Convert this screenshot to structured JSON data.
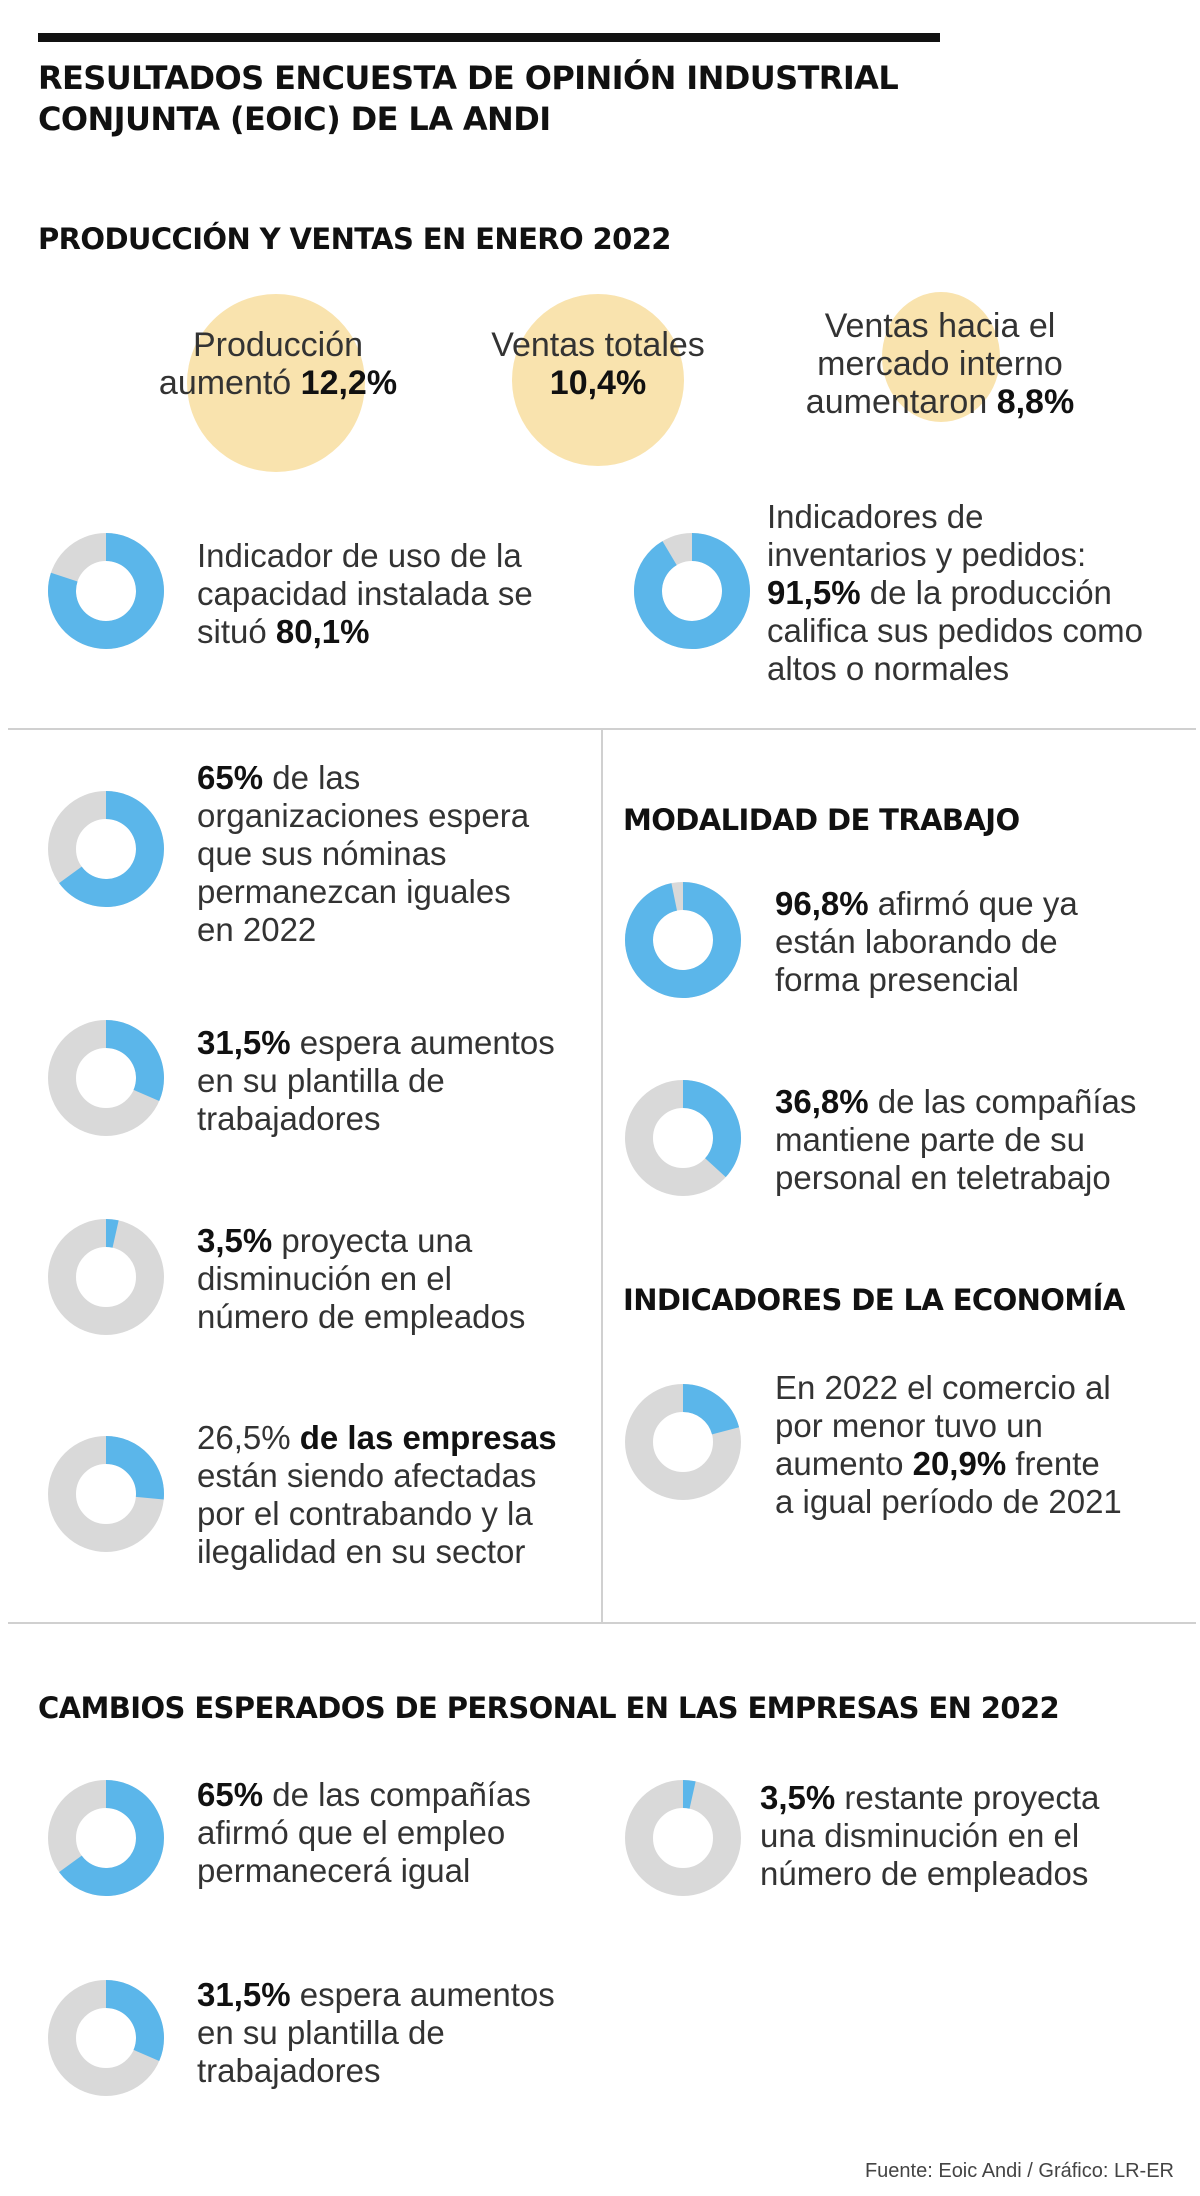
{
  "title_line1": "RESULTADOS ENCUESTA DE OPINIÓN INDUSTRIAL",
  "title_line2": "CONJUNTA (EOIC) DE LA ANDI",
  "colors": {
    "highlight": "#5bb6ea",
    "remainder": "#d9d9d9",
    "bubble": "#f9e3ae"
  },
  "sections": {
    "produccion": "PRODUCCIÓN Y VENTAS  EN ENERO 2022",
    "modalidad": "MODALIDAD DE TRABAJO",
    "economia": "INDICADORES DE LA ECONOMÍA",
    "cambios": "CAMBIOS ESPERADOS DE PERSONAL EN LAS EMPRESAS EN 2022"
  },
  "bubbles": {
    "produccion": {
      "l1": "Producción",
      "l2a": "aumentó ",
      "value": "12,2%"
    },
    "ventas": {
      "l1": "Ventas totales",
      "value": "10,4%"
    },
    "interno": {
      "l1": "Ventas hacia el",
      "l2": "mercado interno",
      "l3a": "aumentaron ",
      "value": "8,8%"
    }
  },
  "chart_data": [
    {
      "type": "pie",
      "style": "donut",
      "id": "capacidad",
      "value": 80.1,
      "text": {
        "l1": "Indicador de uso de la",
        "l2": "capacidad instalada se",
        "l3a": "situó ",
        "value": "80,1%"
      }
    },
    {
      "type": "pie",
      "style": "donut",
      "id": "pedidos",
      "value": 91.5,
      "text": {
        "l1": "Indicadores de",
        "l2": "inventarios y pedidos:",
        "value": "91,5%",
        "l3b": " de la producción",
        "l4": "califica sus pedidos como",
        "l5": "altos o normales"
      }
    },
    {
      "type": "pie",
      "style": "donut",
      "id": "nominas",
      "value": 65,
      "text": {
        "value": "65%",
        "l1b": " de las",
        "l2": "organizaciones espera",
        "l3": "que sus nóminas",
        "l4": "permanezcan iguales",
        "l5": "en 2022"
      }
    },
    {
      "type": "pie",
      "style": "donut",
      "id": "aumentos",
      "value": 31.5,
      "text": {
        "value": "31,5%",
        "l1b": " espera aumentos",
        "l2": "en su plantilla de",
        "l3": "trabajadores"
      }
    },
    {
      "type": "pie",
      "style": "donut",
      "id": "disminucion",
      "value": 3.5,
      "text": {
        "value": "3,5%",
        "l1b": " proyecta una",
        "l2": "disminución en el",
        "l3": "número de empleados"
      }
    },
    {
      "type": "pie",
      "style": "donut",
      "id": "contrabando",
      "value": 26.5,
      "text": {
        "value": "26,5%",
        "l1b": "de las empresas",
        "l2": "están siendo afectadas",
        "l3": "por el contrabando y la",
        "l4": "ilegalidad en su sector"
      }
    },
    {
      "type": "pie",
      "style": "donut",
      "id": "presencial",
      "value": 96.8,
      "text": {
        "value": "96,8%",
        "l1b": " afirmó que ya",
        "l2": "están laborando de",
        "l3": "forma presencial"
      }
    },
    {
      "type": "pie",
      "style": "donut",
      "id": "teletrabajo",
      "value": 36.8,
      "text": {
        "value": "36,8%",
        "l1b": " de las compañías",
        "l2": "mantiene parte de su",
        "l3": "personal en teletrabajo"
      }
    },
    {
      "type": "pie",
      "style": "donut",
      "id": "comercio",
      "value": 20.9,
      "text": {
        "l1": "En 2022 el comercio al",
        "l2": "por menor tuvo un",
        "l3a": "aumento ",
        "value": "20,9%",
        "l3b": " frente",
        "l4": "a igual período de 2021"
      }
    },
    {
      "type": "pie",
      "style": "donut",
      "id": "empleo-igual",
      "value": 65,
      "text": {
        "value": "65%",
        "l1b": " de las compañías",
        "l2": "afirmó que el empleo",
        "l3": "permanecerá igual"
      }
    },
    {
      "type": "pie",
      "style": "donut",
      "id": "restante-disminucion",
      "value": 3.5,
      "text": {
        "value": "3,5%",
        "l1b": " restante proyecta",
        "l2": "una disminución en el",
        "l3": "número de empleados"
      }
    },
    {
      "type": "pie",
      "style": "donut",
      "id": "aumentos-2",
      "value": 31.5,
      "text": {
        "value": "31,5%",
        "l1b": " espera aumentos",
        "l2": "en su plantilla de",
        "l3": "trabajadores"
      }
    }
  ],
  "source": "Fuente: Eoic Andi / Gráfico: LR-ER"
}
